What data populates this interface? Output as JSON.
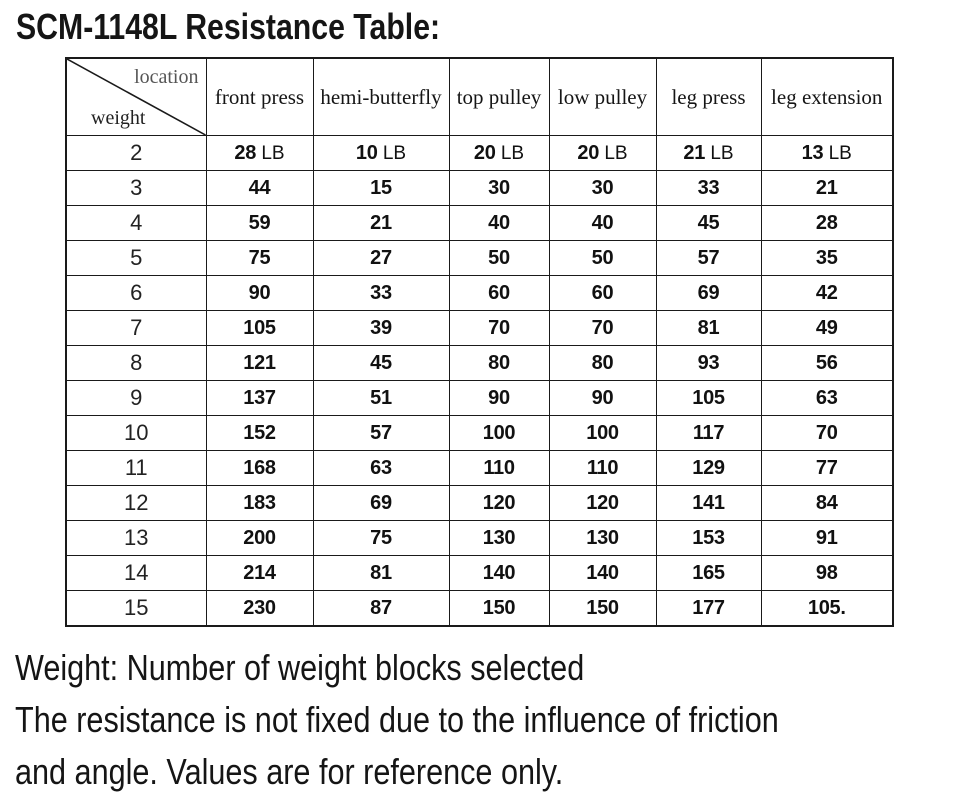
{
  "title": "SCM-1148L Resistance Table:",
  "table": {
    "corner": {
      "top_label": "location",
      "bottom_label": "weight"
    },
    "columns": [
      "front press",
      "hemi-butterfly",
      "top pulley",
      "low pulley",
      "leg press",
      "leg extension"
    ],
    "unit": "LB",
    "rows": [
      {
        "weight": "2",
        "show_unit": true,
        "values": [
          "28",
          "10",
          "20",
          "20",
          "21",
          "13"
        ]
      },
      {
        "weight": "3",
        "show_unit": false,
        "values": [
          "44",
          "15",
          "30",
          "30",
          "33",
          "21"
        ]
      },
      {
        "weight": "4",
        "show_unit": false,
        "values": [
          "59",
          "21",
          "40",
          "40",
          "45",
          "28"
        ]
      },
      {
        "weight": "5",
        "show_unit": false,
        "values": [
          "75",
          "27",
          "50",
          "50",
          "57",
          "35"
        ]
      },
      {
        "weight": "6",
        "show_unit": false,
        "values": [
          "90",
          "33",
          "60",
          "60",
          "69",
          "42"
        ]
      },
      {
        "weight": "7",
        "show_unit": false,
        "values": [
          "105",
          "39",
          "70",
          "70",
          "81",
          "49"
        ]
      },
      {
        "weight": "8",
        "show_unit": false,
        "values": [
          "121",
          "45",
          "80",
          "80",
          "93",
          "56"
        ]
      },
      {
        "weight": "9",
        "show_unit": false,
        "values": [
          "137",
          "51",
          "90",
          "90",
          "105",
          "63"
        ]
      },
      {
        "weight": "10",
        "show_unit": false,
        "values": [
          "152",
          "57",
          "100",
          "100",
          "117",
          "70"
        ]
      },
      {
        "weight": "11",
        "show_unit": false,
        "values": [
          "168",
          "63",
          "110",
          "110",
          "129",
          "77"
        ]
      },
      {
        "weight": "12",
        "show_unit": false,
        "values": [
          "183",
          "69",
          "120",
          "120",
          "141",
          "84"
        ]
      },
      {
        "weight": "13",
        "show_unit": false,
        "values": [
          "200",
          "75",
          "130",
          "130",
          "153",
          "91"
        ]
      },
      {
        "weight": "14",
        "show_unit": false,
        "values": [
          "214",
          "81",
          "140",
          "140",
          "165",
          "98"
        ]
      },
      {
        "weight": "15",
        "show_unit": false,
        "values": [
          "230",
          "87",
          "150",
          "150",
          "177",
          "105."
        ]
      }
    ]
  },
  "notes": [
    "Weight: Number of weight blocks selected",
    "The resistance is not fixed due to the influence of friction",
    "and angle. Values are for reference only."
  ]
}
